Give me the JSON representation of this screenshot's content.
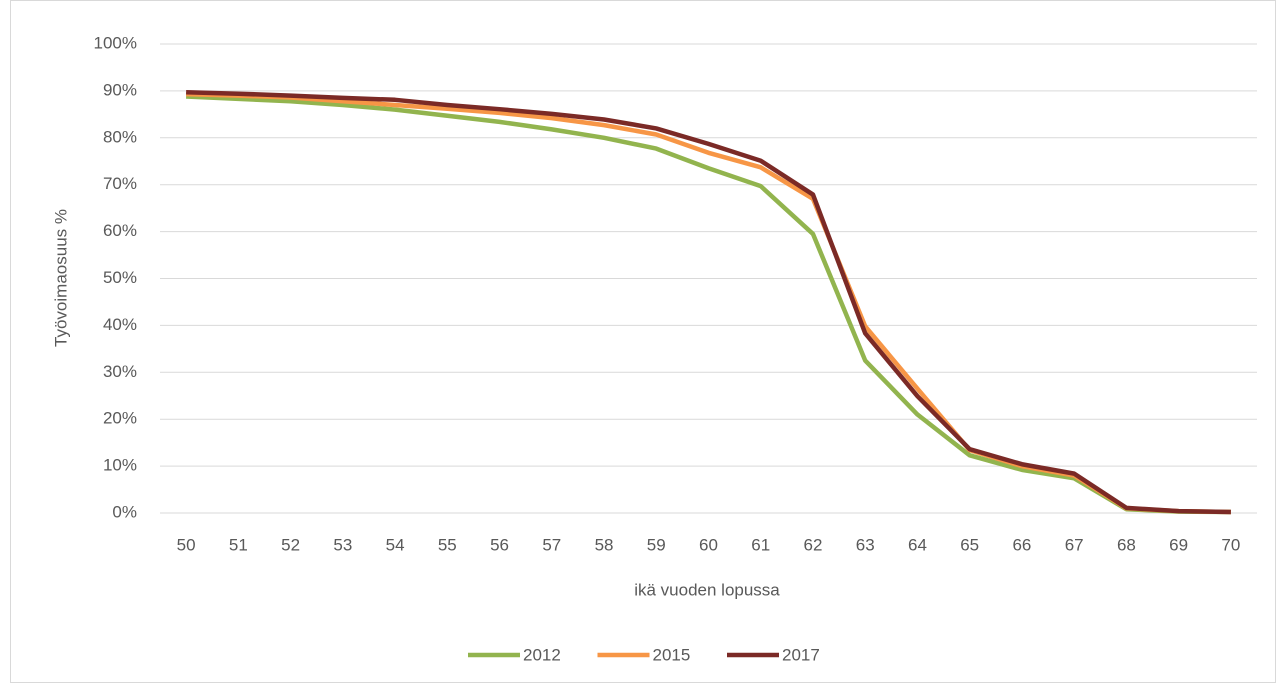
{
  "chart_data": {
    "type": "line",
    "x_label": "ikä vuoden lopussa",
    "y_label": "Työvoimaosuus %",
    "categories": [
      "50",
      "51",
      "52",
      "53",
      "54",
      "55",
      "56",
      "57",
      "58",
      "59",
      "60",
      "61",
      "62",
      "63",
      "64",
      "65",
      "66",
      "67",
      "68",
      "69",
      "70"
    ],
    "series": [
      {
        "name": "2012",
        "color": "#92b44e",
        "values": [
          88.8,
          88.3,
          87.8,
          87,
          86,
          84.7,
          83.4,
          81.8,
          80,
          77.7,
          73.5,
          69.7,
          59.5,
          32.5,
          21,
          12.3,
          9.2,
          7.4,
          0.8,
          0.3,
          0.2
        ]
      },
      {
        "name": "2015",
        "color": "#f79646",
        "values": [
          89.3,
          89,
          88.6,
          87.8,
          87,
          86.2,
          85.3,
          84.2,
          82.7,
          80.7,
          76.8,
          73.7,
          67,
          39.8,
          26.5,
          13.4,
          10,
          8,
          1,
          0.4,
          0.2
        ]
      },
      {
        "name": "2017",
        "color": "#7b2a26",
        "values": [
          89.7,
          89.4,
          89,
          88.5,
          88.1,
          87,
          86.1,
          85.1,
          83.9,
          82,
          78.7,
          75.1,
          67.9,
          38.3,
          24.9,
          13.6,
          10.4,
          8.4,
          1.1,
          0.4,
          0.2
        ]
      }
    ],
    "ylim": [
      0,
      100
    ],
    "yticks": [
      {
        "value": 0,
        "label": "0%"
      },
      {
        "value": 10,
        "label": "10%"
      },
      {
        "value": 20,
        "label": "20%"
      },
      {
        "value": 30,
        "label": "30%"
      },
      {
        "value": 40,
        "label": "40%"
      },
      {
        "value": 50,
        "label": "50%"
      },
      {
        "value": 60,
        "label": "60%"
      },
      {
        "value": 70,
        "label": "70%"
      },
      {
        "value": 80,
        "label": "80%"
      },
      {
        "value": 90,
        "label": "90%"
      },
      {
        "value": 100,
        "label": "100%"
      }
    ],
    "grid": true,
    "legend": "bottom"
  }
}
